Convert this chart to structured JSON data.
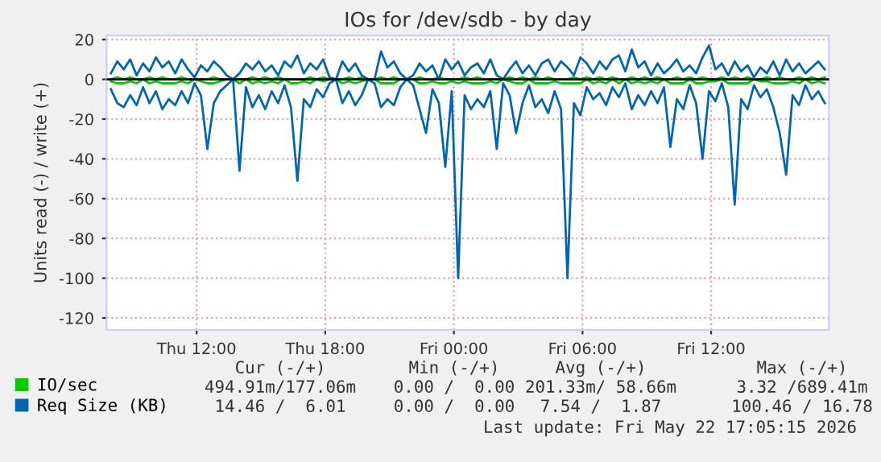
{
  "chart_data": {
    "type": "line",
    "title": "IOs for /dev/sdb - by day",
    "ylabel": "Units read (-) / write (+)",
    "x": [
      "2026-05-21T08:00",
      "2026-05-21T08:18",
      "2026-05-21T08:36",
      "2026-05-21T08:54",
      "2026-05-21T09:12",
      "2026-05-21T09:30",
      "2026-05-21T09:48",
      "2026-05-21T10:06",
      "2026-05-21T10:24",
      "2026-05-21T10:42",
      "2026-05-21T11:00",
      "2026-05-21T11:18",
      "2026-05-21T11:36",
      "2026-05-21T11:54",
      "2026-05-21T12:12",
      "2026-05-21T12:30",
      "2026-05-21T12:48",
      "2026-05-21T13:06",
      "2026-05-21T13:24",
      "2026-05-21T13:42",
      "2026-05-21T14:00",
      "2026-05-21T14:18",
      "2026-05-21T14:36",
      "2026-05-21T14:54",
      "2026-05-21T15:12",
      "2026-05-21T15:30",
      "2026-05-21T15:48",
      "2026-05-21T16:06",
      "2026-05-21T16:24",
      "2026-05-21T16:42",
      "2026-05-21T17:00",
      "2026-05-21T17:18",
      "2026-05-21T17:36",
      "2026-05-21T17:54",
      "2026-05-21T18:12",
      "2026-05-21T18:30",
      "2026-05-21T18:48",
      "2026-05-21T19:06",
      "2026-05-21T19:24",
      "2026-05-21T19:42",
      "2026-05-21T20:00",
      "2026-05-21T20:18",
      "2026-05-21T20:36",
      "2026-05-21T20:54",
      "2026-05-21T21:12",
      "2026-05-21T21:30",
      "2026-05-21T21:48",
      "2026-05-21T22:06",
      "2026-05-21T22:24",
      "2026-05-21T22:42",
      "2026-05-21T23:00",
      "2026-05-21T23:18",
      "2026-05-21T23:36",
      "2026-05-21T23:54",
      "2026-05-22T00:12",
      "2026-05-22T00:30",
      "2026-05-22T00:48",
      "2026-05-22T01:06",
      "2026-05-22T01:24",
      "2026-05-22T01:42",
      "2026-05-22T02:00",
      "2026-05-22T02:18",
      "2026-05-22T02:36",
      "2026-05-22T02:54",
      "2026-05-22T03:12",
      "2026-05-22T03:30",
      "2026-05-22T03:48",
      "2026-05-22T04:06",
      "2026-05-22T04:24",
      "2026-05-22T04:42",
      "2026-05-22T05:00",
      "2026-05-22T05:18",
      "2026-05-22T05:36",
      "2026-05-22T05:54",
      "2026-05-22T06:12",
      "2026-05-22T06:30",
      "2026-05-22T06:48",
      "2026-05-22T07:06",
      "2026-05-22T07:24",
      "2026-05-22T07:42",
      "2026-05-22T08:00",
      "2026-05-22T08:18",
      "2026-05-22T08:36",
      "2026-05-22T08:54",
      "2026-05-22T09:12",
      "2026-05-22T09:30",
      "2026-05-22T09:48",
      "2026-05-22T10:06",
      "2026-05-22T10:24",
      "2026-05-22T10:42",
      "2026-05-22T11:00",
      "2026-05-22T11:18",
      "2026-05-22T11:36",
      "2026-05-22T11:54",
      "2026-05-22T12:12",
      "2026-05-22T12:30",
      "2026-05-22T12:48",
      "2026-05-22T13:06",
      "2026-05-22T13:24",
      "2026-05-22T13:42",
      "2026-05-22T14:00",
      "2026-05-22T14:18",
      "2026-05-22T14:36",
      "2026-05-22T14:54",
      "2026-05-22T15:12",
      "2026-05-22T15:30",
      "2026-05-22T15:48",
      "2026-05-22T16:06",
      "2026-05-22T16:24",
      "2026-05-22T16:42",
      "2026-05-22T17:00",
      "2026-05-22T17:18"
    ],
    "series": [
      {
        "name": "IO/sec",
        "color": "#00cc00",
        "values": [
          0,
          1,
          0,
          1,
          0,
          0,
          1,
          0,
          1,
          0,
          0,
          1,
          0,
          0,
          0,
          0,
          1,
          0,
          0,
          0,
          0,
          0,
          1,
          0,
          1,
          0,
          1,
          0,
          0,
          0,
          0,
          1,
          0,
          1,
          0,
          0,
          0,
          1,
          0,
          1,
          0,
          0,
          1,
          0,
          1,
          0,
          0,
          0,
          1,
          0,
          0,
          1,
          0,
          0,
          0,
          1,
          0,
          1,
          0,
          0,
          0,
          0,
          1,
          0,
          1,
          0,
          1,
          0,
          1,
          0,
          0,
          0,
          1,
          0,
          1,
          0,
          1,
          0,
          1,
          0,
          0,
          1,
          0,
          1,
          0,
          1,
          0,
          0,
          1,
          0,
          1,
          0,
          1,
          0,
          0,
          1,
          0,
          1,
          0,
          1,
          0,
          0,
          1,
          0,
          1,
          0,
          0,
          1,
          0,
          1,
          0,
          1
        ]
      },
      {
        "color": "#00cc00",
        "values": [
          -1,
          -2,
          -2,
          -1,
          -2,
          0,
          -2,
          -1,
          -2,
          -2,
          -2,
          -1,
          -2,
          0,
          -1,
          -2,
          -2,
          -1,
          0,
          0,
          -2,
          0,
          -2,
          -1,
          -2,
          -1,
          -2,
          0,
          -2,
          -2,
          -1,
          -2,
          0,
          -1,
          0,
          0,
          -2,
          -1,
          -2,
          -1,
          0,
          0,
          -2,
          -2,
          -2,
          0,
          0,
          0,
          -2,
          -2,
          -1,
          -2,
          -2,
          -1,
          -2,
          -1,
          -2,
          -2,
          -2,
          -1,
          -2,
          0,
          -1,
          -2,
          -2,
          0,
          -2,
          -2,
          -2,
          -1,
          -2,
          -2,
          -2,
          -2,
          0,
          -2,
          -1,
          -2,
          0,
          -2,
          0,
          -2,
          -1,
          -2,
          -1,
          -2,
          0,
          -2,
          -2,
          -2,
          0,
          -2,
          -2,
          -1,
          -1,
          0,
          -2,
          -2,
          -2,
          -2,
          0,
          -1,
          -1,
          -2,
          -2,
          -2,
          -1,
          -2,
          0,
          -2,
          -1,
          -2
        ]
      },
      {
        "name": "Req Size (KB)",
        "color": "#0066b3",
        "values": [
          3,
          9,
          5,
          10,
          2,
          8,
          4,
          11,
          6,
          9,
          3,
          10,
          5,
          1,
          7,
          4,
          9,
          6,
          2,
          0,
          3,
          8,
          5,
          9,
          4,
          7,
          2,
          9,
          6,
          12,
          3,
          8,
          5,
          10,
          1,
          0,
          9,
          4,
          8,
          2,
          0,
          0,
          14,
          6,
          9,
          3,
          0,
          2,
          8,
          4,
          7,
          0,
          10,
          5,
          9,
          2,
          6,
          8,
          3,
          10,
          2,
          0,
          5,
          9,
          3,
          7,
          2,
          8,
          10,
          4,
          9,
          6,
          2,
          11,
          8,
          3,
          9,
          5,
          10,
          12,
          4,
          15,
          6,
          9,
          2,
          8,
          3,
          6,
          10,
          4,
          7,
          3,
          11,
          17,
          5,
          8,
          2,
          9,
          4,
          7,
          1,
          6,
          3,
          9,
          2,
          10,
          4,
          8,
          3,
          6,
          9,
          5
        ]
      },
      {
        "color": "#0066b3",
        "values": [
          -5,
          -12,
          -14,
          -8,
          -13,
          -4,
          -12,
          -6,
          -15,
          -10,
          -13,
          -6,
          -12,
          -2,
          -8,
          -35,
          -12,
          -6,
          -3,
          0,
          -46,
          -4,
          -14,
          -8,
          -15,
          -6,
          -12,
          -3,
          -14,
          -51,
          -10,
          -14,
          -5,
          -9,
          -2,
          0,
          -12,
          -6,
          -13,
          -8,
          0,
          -2,
          -14,
          -10,
          -13,
          -4,
          0,
          -3,
          -15,
          -27,
          -5,
          -12,
          -44,
          -6,
          -100,
          -8,
          -15,
          -10,
          -14,
          -6,
          -35,
          -2,
          -8,
          -27,
          -12,
          -3,
          -14,
          -10,
          -17,
          -6,
          -15,
          -100,
          -12,
          -18,
          -4,
          -10,
          -7,
          -13,
          -4,
          -9,
          -2,
          -15,
          -8,
          -13,
          -6,
          -12,
          -4,
          -34,
          -10,
          -15,
          -3,
          -12,
          -40,
          -6,
          -11,
          -2,
          -14,
          -63,
          -10,
          -15,
          -3,
          -9,
          -5,
          -14,
          -27,
          -48,
          -8,
          -13,
          -3,
          -10,
          -6,
          -12
        ]
      }
    ],
    "xlim": [
      "2026-05-21T07:48",
      "2026-05-22T17:30"
    ],
    "xticks": [
      {
        "value": "2026-05-21T12:00",
        "label": "Thu 12:00"
      },
      {
        "value": "2026-05-21T18:00",
        "label": "Thu 18:00"
      },
      {
        "value": "2026-05-22T00:00",
        "label": "Fri 00:00"
      },
      {
        "value": "2026-05-22T06:00",
        "label": "Fri 06:00"
      },
      {
        "value": "2026-05-22T12:00",
        "label": "Fri 12:00"
      }
    ],
    "ylim": [
      -126,
      22
    ],
    "yticks": [
      -120,
      -100,
      -80,
      -60,
      -40,
      -20,
      0,
      20
    ],
    "ref_lines": [
      {
        "axis": "y",
        "value": 0,
        "color": "#000000"
      }
    ],
    "grid": true,
    "legend": "bottom left",
    "annotations": [
      "Cur (-/+)",
      "Min (-/+)",
      "Avg (-/+)",
      "Max (-/+)",
      "494.91m/177.06m",
      "0.00 /  0.00",
      "201.33m/ 58.66m",
      "3.32 /689.41m",
      "14.46 /  6.01",
      "0.00 /  0.00",
      "7.54 /  1.87",
      "100.46 / 16.78",
      "Last update: Fri May 22 17:05:15 2026"
    ]
  }
}
